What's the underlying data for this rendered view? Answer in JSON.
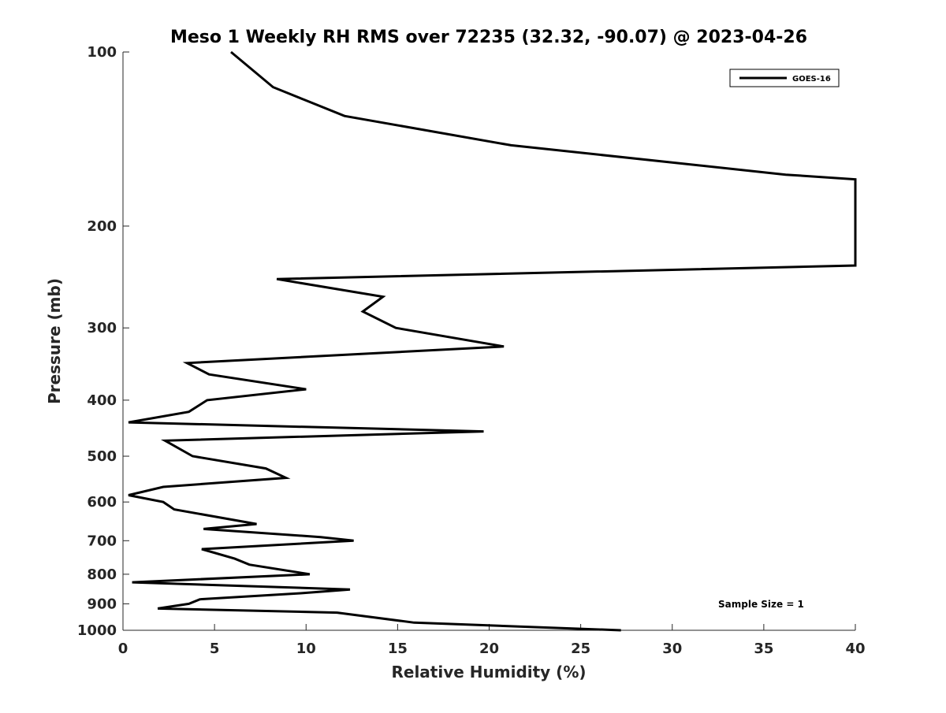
{
  "chart_data": {
    "type": "line",
    "title": "Meso 1 Weekly RH RMS over 72235 (32.32, -90.07) @ 2023-04-26",
    "xlabel": "Relative Humidity (%)",
    "ylabel": "Pressure (mb)",
    "xlim": [
      0,
      40
    ],
    "ylim": [
      100,
      1000
    ],
    "y_scale": "log",
    "y_reversed": true,
    "x_ticks": [
      0,
      5,
      10,
      15,
      20,
      25,
      30,
      35,
      40
    ],
    "x_tick_labels": [
      "0",
      "5",
      "10",
      "15",
      "20",
      "25",
      "30",
      "35",
      "40"
    ],
    "y_ticks": [
      100,
      200,
      300,
      400,
      500,
      600,
      700,
      800,
      900,
      1000
    ],
    "y_tick_labels": [
      "100",
      "200",
      "300",
      "400",
      "500",
      "600",
      "700",
      "800",
      "900",
      "1000"
    ],
    "grid": false,
    "legend_position": "top-right",
    "series": [
      {
        "name": "GOES-16",
        "color": "#000000",
        "points": [
          [
            5.9,
            100
          ],
          [
            8.2,
            115
          ],
          [
            12.1,
            129
          ],
          [
            21.2,
            145
          ],
          [
            36.2,
            163
          ],
          [
            40.0,
            166
          ],
          [
            40.0,
            234
          ],
          [
            8.4,
            247
          ],
          [
            14.2,
            265
          ],
          [
            13.1,
            281
          ],
          [
            14.9,
            300
          ],
          [
            20.8,
            323
          ],
          [
            3.5,
            345
          ],
          [
            4.7,
            361
          ],
          [
            10.0,
            383
          ],
          [
            4.6,
            400
          ],
          [
            3.6,
            419
          ],
          [
            0.3,
            437
          ],
          [
            19.7,
            453
          ],
          [
            2.3,
            470
          ],
          [
            3.8,
            500
          ],
          [
            7.8,
            525
          ],
          [
            8.9,
            545
          ],
          [
            2.2,
            565
          ],
          [
            0.3,
            584
          ],
          [
            2.2,
            600
          ],
          [
            2.8,
            618
          ],
          [
            7.3,
            655
          ],
          [
            4.4,
            668
          ],
          [
            10.8,
            690
          ],
          [
            12.6,
            700
          ],
          [
            4.3,
            724
          ],
          [
            6.1,
            752
          ],
          [
            6.9,
            770
          ],
          [
            10.2,
            800
          ],
          [
            0.5,
            826
          ],
          [
            12.4,
            850
          ],
          [
            9.7,
            863
          ],
          [
            4.2,
            884
          ],
          [
            3.6,
            900
          ],
          [
            1.9,
            917
          ],
          [
            11.7,
            932
          ],
          [
            15.9,
            970
          ],
          [
            27.2,
            1000
          ]
        ]
      }
    ],
    "annotations": [
      {
        "text": "Sample Size = 1",
        "position": "bottom-right"
      }
    ]
  }
}
